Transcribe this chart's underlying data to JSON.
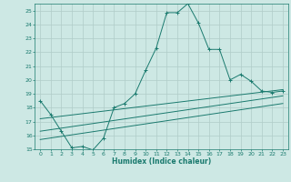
{
  "xlabel": "Humidex (Indice chaleur)",
  "background_color": "#cde8e4",
  "grid_color": "#b0ccc8",
  "line_color": "#1a7a6e",
  "xlim": [
    -0.5,
    23.5
  ],
  "ylim": [
    15,
    25.5
  ],
  "x_ticks": [
    0,
    1,
    2,
    3,
    4,
    5,
    6,
    7,
    8,
    9,
    10,
    11,
    12,
    13,
    14,
    15,
    16,
    17,
    18,
    19,
    20,
    21,
    22,
    23
  ],
  "y_ticks": [
    15,
    16,
    17,
    18,
    19,
    20,
    21,
    22,
    23,
    24,
    25
  ],
  "main_line_x": [
    0,
    1,
    2,
    3,
    4,
    5,
    6,
    7,
    8,
    9,
    10,
    11,
    12,
    13,
    14,
    15,
    16,
    17,
    18,
    19,
    20,
    21,
    22,
    23
  ],
  "main_line_y": [
    18.5,
    17.5,
    16.3,
    15.1,
    15.2,
    14.95,
    15.8,
    18.0,
    18.3,
    19.0,
    20.7,
    22.3,
    24.85,
    24.85,
    25.5,
    24.1,
    22.2,
    22.2,
    20.0,
    20.4,
    19.9,
    19.2,
    19.1,
    19.2
  ],
  "line2_x": [
    0,
    23
  ],
  "line2_y": [
    17.2,
    19.3
  ],
  "line3_x": [
    0,
    23
  ],
  "line3_y": [
    16.3,
    18.85
  ],
  "line4_x": [
    0,
    23
  ],
  "line4_y": [
    15.7,
    18.3
  ]
}
